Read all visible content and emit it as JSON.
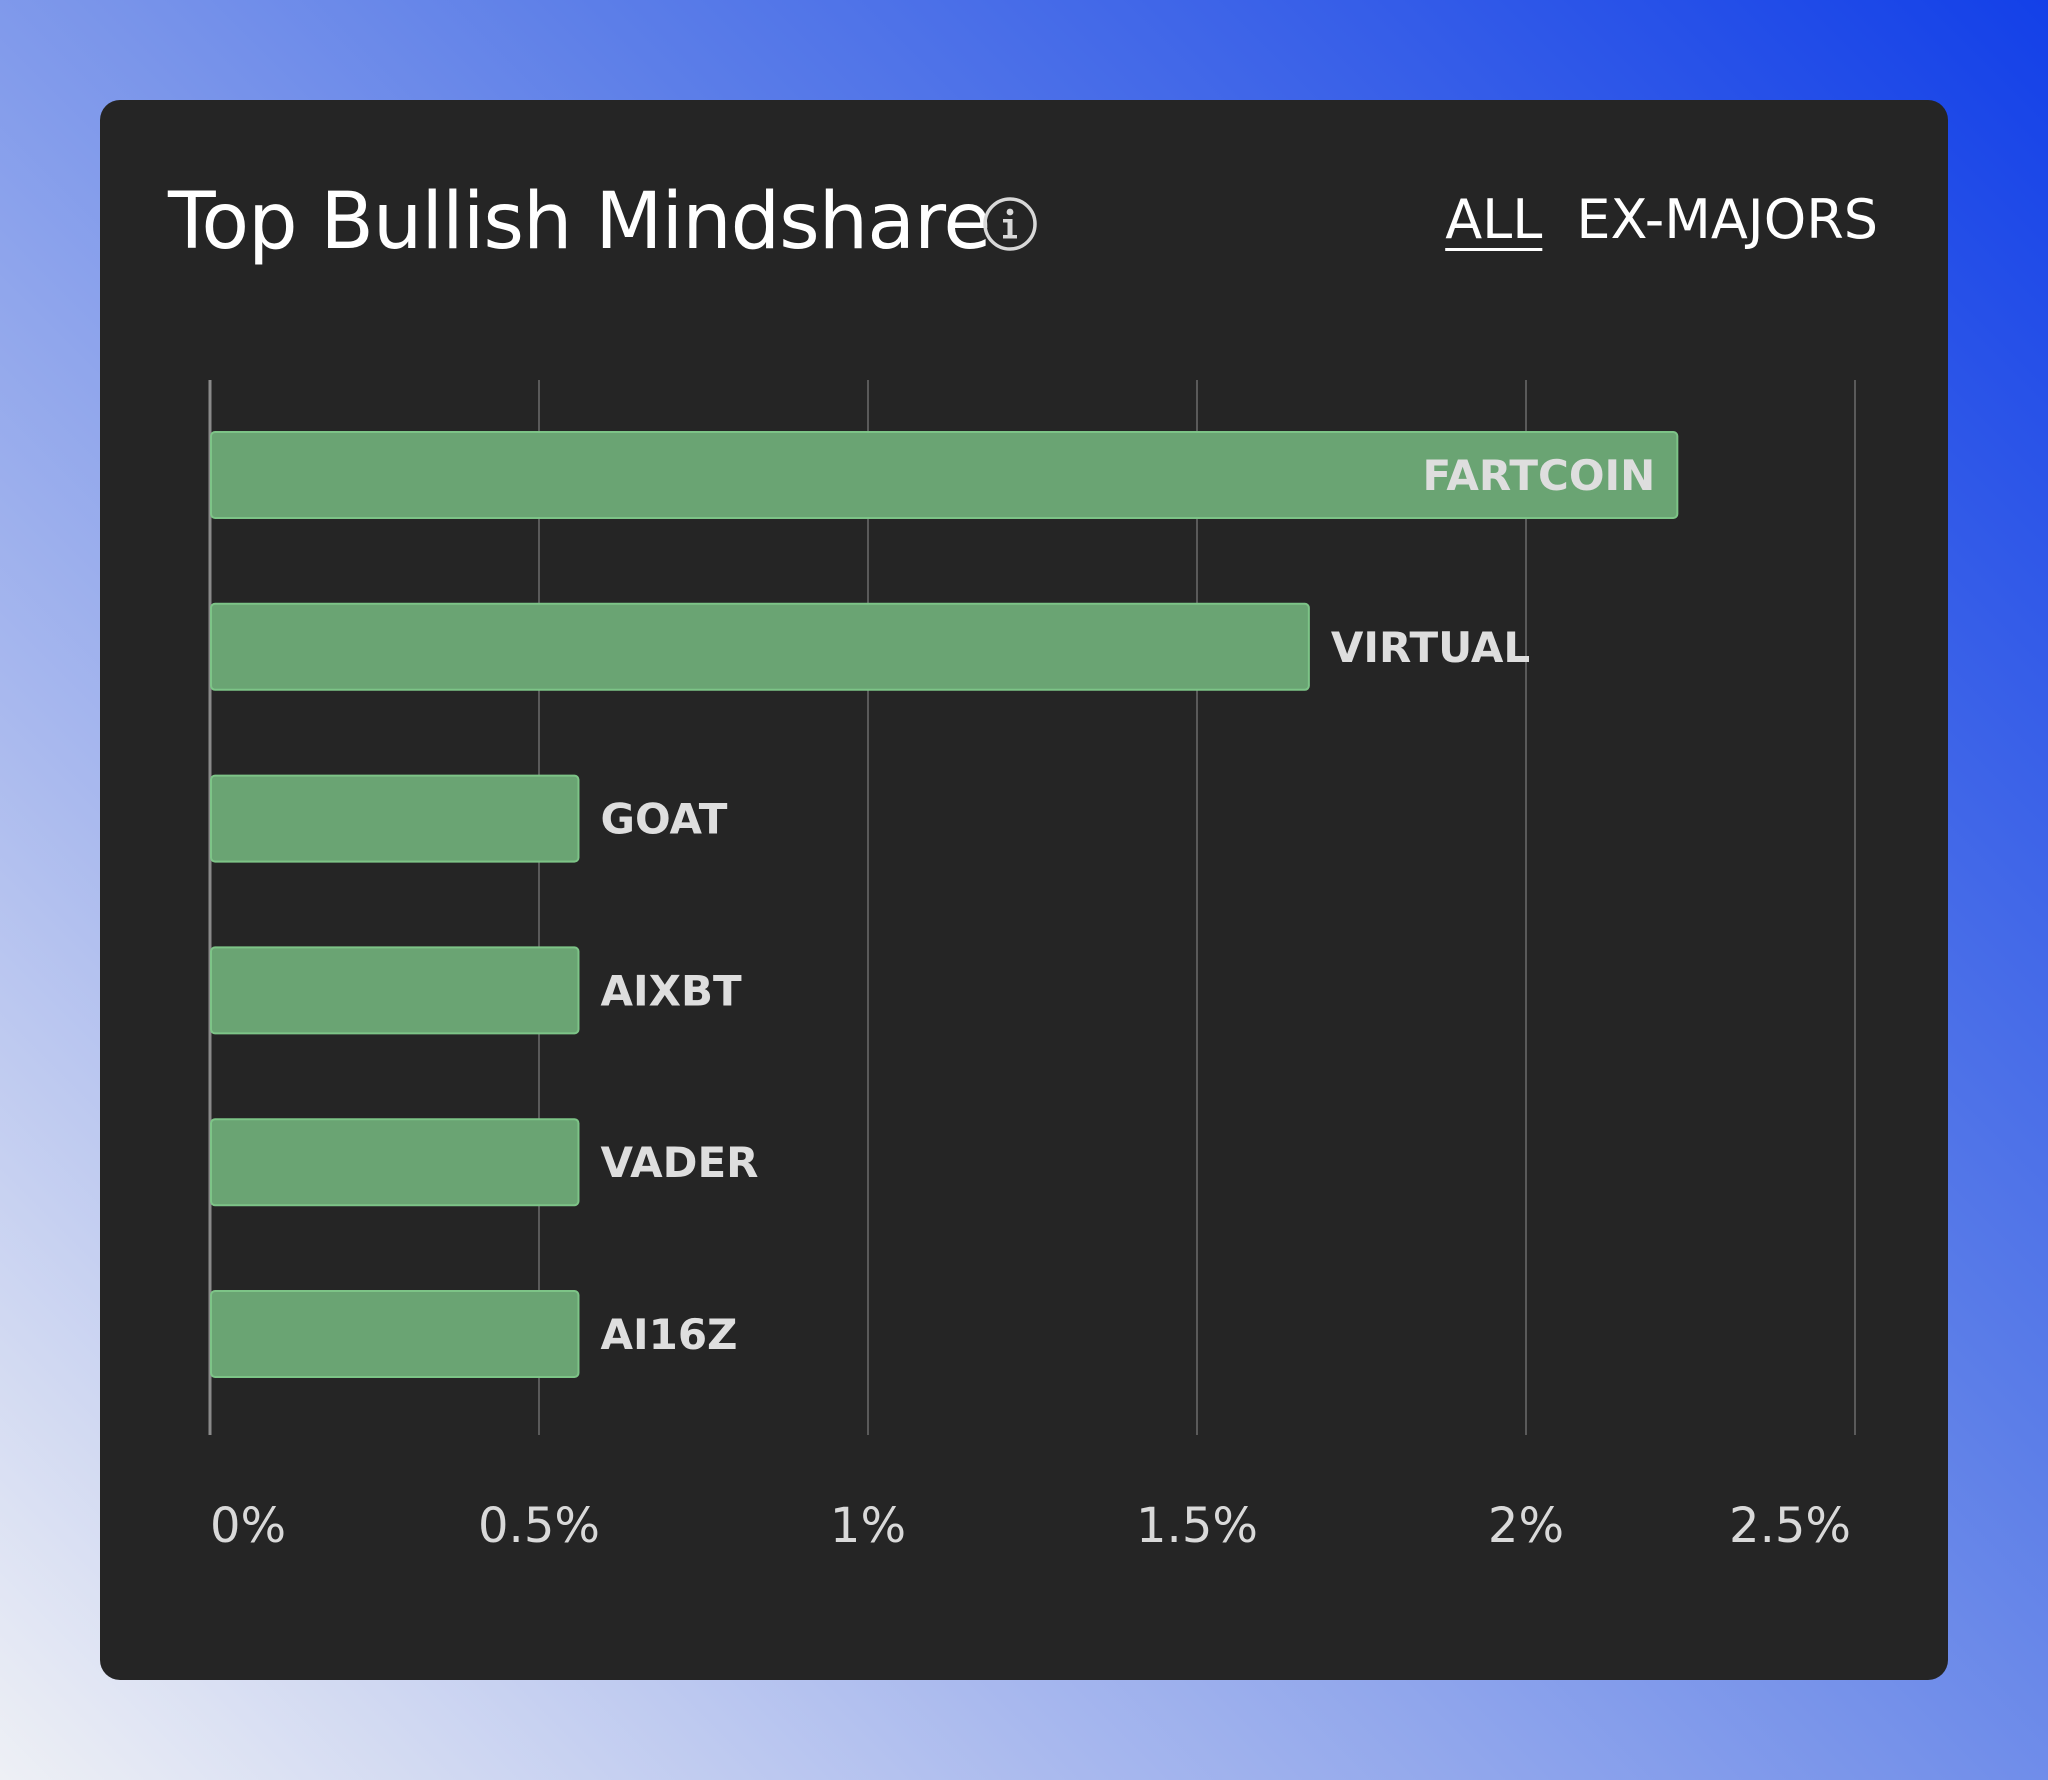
{
  "header": {
    "title": "Top Bullish Mindshare",
    "filters": [
      {
        "label": "ALL",
        "active": true
      },
      {
        "label": "EX-MAJORS",
        "active": false
      }
    ]
  },
  "icons": {
    "info": "info-icon"
  },
  "colors": {
    "bar_fill": "#6aa473",
    "bar_stroke": "#7dc487",
    "grid": "#5a5a5a",
    "axis": "#8a8a8a",
    "label": "#dedede",
    "tick": "#d9d9d9"
  },
  "chart_data": {
    "type": "bar",
    "orientation": "horizontal",
    "categories": [
      "FARTCOIN",
      "VIRTUAL",
      "GOAT",
      "AIXBT",
      "VADER",
      "AI16Z"
    ],
    "values": [
      2.23,
      1.67,
      0.56,
      0.56,
      0.56,
      0.56
    ],
    "xlim": [
      0,
      2.5
    ],
    "xticks": [
      0,
      0.5,
      1,
      1.5,
      2,
      2.5
    ],
    "xtick_labels": [
      "0%",
      "0.5%",
      "1%",
      "1.5%",
      "2%",
      "2.5%"
    ],
    "grid": true,
    "legend": false
  }
}
